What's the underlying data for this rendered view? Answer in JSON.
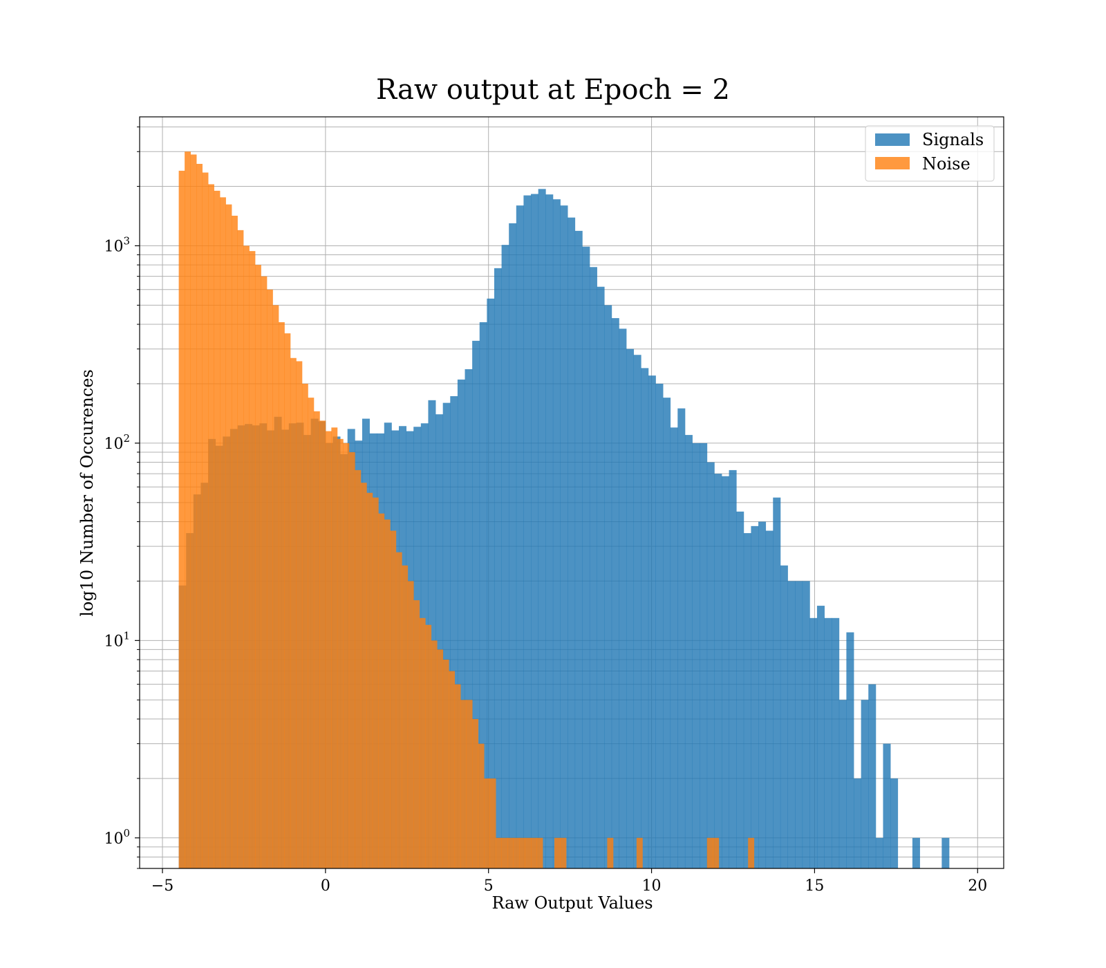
{
  "chart_data": {
    "type": "histogram",
    "title": "Raw output at Epoch = 2",
    "xlabel": "Raw Output Values",
    "ylabel": "log10 Number of Occurences",
    "xlim": [
      -5.7,
      20.8
    ],
    "ylim": [
      0.7,
      4500
    ],
    "yscale": "log",
    "grid": true,
    "legend_position": "top-right",
    "x_ticks": [
      -5,
      0,
      5,
      10,
      15,
      20
    ],
    "x_tick_labels": [
      "−5",
      "0",
      "5",
      "10",
      "15",
      "20"
    ],
    "y_ticks": [
      1,
      10,
      100,
      1000
    ],
    "y_tick_bases": [
      "10",
      "10",
      "10",
      "10"
    ],
    "y_tick_exponents": [
      "0",
      "1",
      "2",
      "3"
    ],
    "series": [
      {
        "name": "Signals",
        "color": "#1f77b4",
        "opacity": 0.8,
        "bin_start": -4.5,
        "bin_width": 0.225,
        "counts": [
          19,
          35,
          55,
          63,
          105,
          97,
          108,
          118,
          123,
          125,
          123,
          126,
          116,
          136,
          117,
          126,
          127,
          110,
          133,
          129,
          100,
          108,
          88,
          118,
          103,
          133,
          112,
          112,
          127,
          116,
          122,
          115,
          121,
          126,
          165,
          140,
          160,
          173,
          210,
          237,
          330,
          410,
          540,
          770,
          1010,
          1300,
          1600,
          1800,
          1830,
          1940,
          1820,
          1720,
          1600,
          1390,
          1190,
          990,
          780,
          620,
          500,
          430,
          380,
          300,
          280,
          240,
          220,
          200,
          170,
          120,
          150,
          110,
          100,
          100,
          80,
          70,
          68,
          73,
          45,
          35,
          38,
          40,
          36,
          53,
          24,
          20,
          20,
          20,
          13,
          15,
          13,
          13,
          5,
          11,
          2,
          5,
          6,
          1,
          3,
          2,
          0,
          0,
          1,
          0,
          0,
          0,
          1
        ]
      },
      {
        "name": "Noise",
        "color": "#ff7f0e",
        "opacity": 0.8,
        "bin_start": -4.5,
        "bin_width": 0.18,
        "counts": [
          2400,
          3000,
          2900,
          2600,
          2350,
          2050,
          1900,
          1760,
          1620,
          1420,
          1200,
          1000,
          940,
          800,
          700,
          600,
          500,
          410,
          360,
          270,
          260,
          200,
          170,
          145,
          130,
          115,
          120,
          105,
          100,
          90,
          73,
          63,
          56,
          53,
          44,
          41,
          36,
          28,
          24,
          20,
          16,
          13,
          12,
          10,
          9,
          8,
          7,
          6,
          5,
          5,
          4,
          3,
          2,
          2,
          1,
          1,
          1,
          1,
          1,
          1,
          1,
          1,
          0,
          0,
          1,
          1,
          0,
          0,
          0,
          0,
          0,
          0,
          0,
          1,
          0,
          0,
          0,
          0,
          1,
          0,
          0,
          0,
          0,
          0,
          0,
          0,
          0,
          0,
          0,
          0,
          1,
          1,
          0,
          0,
          0,
          0,
          0,
          1
        ]
      }
    ]
  }
}
